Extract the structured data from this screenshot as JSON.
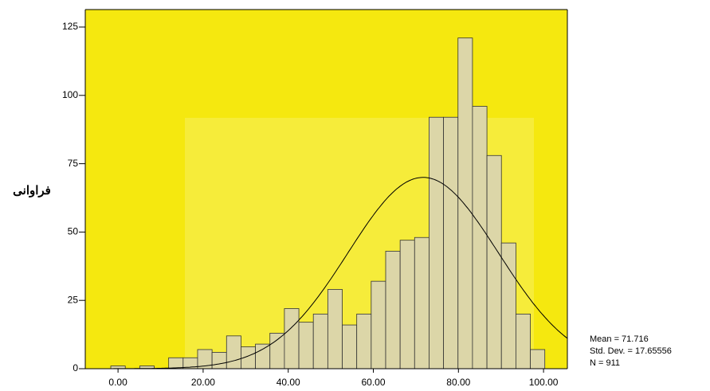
{
  "chart_data": {
    "type": "histogram",
    "y_label": "فراوانی",
    "bins": [
      -1.7,
      1.7,
      5.1,
      8.5,
      11.9,
      15.3,
      18.7,
      22.1,
      25.5,
      28.9,
      32.3,
      35.7,
      39.1,
      42.5,
      45.9,
      49.3,
      52.7,
      56.1,
      59.5,
      62.9,
      66.3,
      69.7,
      73.1,
      76.5,
      79.9,
      83.3,
      86.7,
      90.1,
      93.5,
      96.9,
      100.3
    ],
    "values": [
      1,
      0,
      1,
      0,
      4,
      4,
      7,
      6,
      12,
      8,
      9,
      13,
      22,
      17,
      20,
      29,
      16,
      20,
      32,
      43,
      47,
      48,
      92,
      92,
      121,
      96,
      78,
      46,
      20,
      7
    ],
    "color": "#dcd6a8",
    "background": "#f5e80f",
    "xlim": [
      -7.7,
      105.6
    ],
    "ylim": [
      0,
      131.4
    ],
    "xticks": [
      {
        "value": 0,
        "label": "0.00"
      },
      {
        "value": 20,
        "label": "20.00"
      },
      {
        "value": 40,
        "label": "40.00"
      },
      {
        "value": 60,
        "label": "60.00"
      },
      {
        "value": 80,
        "label": "80.00"
      },
      {
        "value": 100,
        "label": "100.00"
      }
    ],
    "yticks": [
      0,
      25,
      50,
      75,
      100,
      125
    ],
    "normal_curve": true,
    "stats": {
      "mean": {
        "value": 71.716,
        "label": "Mean = 71.716"
      },
      "std": {
        "value": 17.65556,
        "label": "Std. Dev. = 17.65556"
      },
      "n": {
        "value": 911,
        "label": "N = 911"
      }
    }
  }
}
